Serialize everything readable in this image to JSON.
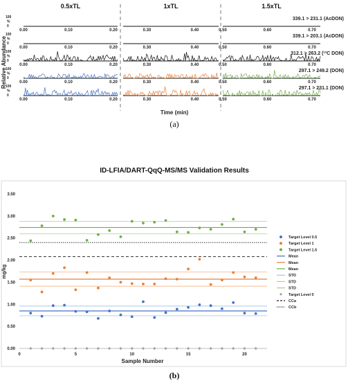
{
  "chart_data": [
    {
      "type": "line",
      "xlabel": "Time (min)",
      "ylabel": "Relative Abundance",
      "caption": "(a)",
      "segments": [
        "0.5xTL",
        "1xTL",
        "1.5xTL"
      ],
      "segment_ranges": [
        [
          0.0,
          0.2
        ],
        [
          0.25,
          0.45
        ],
        [
          0.5,
          0.7
        ]
      ],
      "tick_labels": [
        [
          "0.00",
          "0.10",
          "0.20"
        ],
        [
          "0.30",
          "0.40"
        ],
        [
          "0.50",
          "0.60",
          "0.70"
        ]
      ],
      "y_tick_labels": [
        "100",
        "%",
        "0"
      ],
      "colors": {
        "black": "#111111",
        "blue": "#4472C4",
        "orange": "#ED7D31",
        "green": "#70AD47"
      },
      "traces": [
        {
          "label": "339.1 > 231.1 (AcDON)",
          "style": "flat"
        },
        {
          "label": "339.1 > 203.1 (AcDON)",
          "style": "flat"
        },
        {
          "label": "312.1 > 263.2 (¹³C DON)",
          "style": "noise_black",
          "peak": 0.6
        },
        {
          "label": "297.1 > 249.2 (DON)",
          "style": "noise_colored",
          "peak": 0.45
        },
        {
          "label": "297.1 > 231.1 (DON)",
          "style": "noise_colored",
          "peak": 0.55
        }
      ]
    },
    {
      "type": "scatter",
      "title": "ID-LFIA/DART-QqQ-MS/MS Validation Results",
      "xlabel": "Sample Number",
      "ylabel": "mg/kg",
      "caption": "(b)",
      "xlim": [
        0,
        22
      ],
      "ylim": [
        0,
        3.5
      ],
      "x_ticks": [
        0,
        5,
        10,
        15,
        20
      ],
      "y_ticks": [
        "0.00",
        "0.50",
        "1.00",
        "1.50",
        "2.00",
        "2.50",
        "3.00",
        "3.50"
      ],
      "grid": false,
      "legend_position": "right",
      "series": [
        {
          "name": "Target Level 0.5",
          "color": "#4472C4",
          "x": [
            1,
            2,
            3,
            4,
            5,
            6,
            7,
            8,
            9,
            10,
            11,
            12,
            13,
            14,
            15,
            16,
            17,
            18,
            19,
            20,
            21
          ],
          "y": [
            0.8,
            0.73,
            0.97,
            0.98,
            0.84,
            0.83,
            0.68,
            0.85,
            0.76,
            0.72,
            1.06,
            0.7,
            0.81,
            0.89,
            0.93,
            0.99,
            0.97,
            0.9,
            1.04,
            0.8,
            0.79
          ]
        },
        {
          "name": "Target Level 1",
          "color": "#ED7D31",
          "x": [
            1,
            2,
            3,
            4,
            5,
            6,
            7,
            8,
            9,
            10,
            11,
            12,
            13,
            14,
            15,
            16,
            17,
            18,
            19,
            20,
            21
          ],
          "y": [
            1.55,
            1.28,
            1.7,
            1.83,
            1.33,
            1.72,
            1.37,
            1.6,
            1.5,
            1.47,
            1.46,
            1.46,
            1.58,
            1.57,
            1.8,
            2.02,
            1.45,
            1.55,
            1.72,
            1.62,
            1.6
          ]
        },
        {
          "name": "Target Level 1.5",
          "color": "#70AD47",
          "x": [
            1,
            2,
            3,
            4,
            5,
            6,
            7,
            8,
            9,
            10,
            11,
            12,
            13,
            14,
            15,
            16,
            17,
            18,
            19,
            20,
            21
          ],
          "y": [
            2.44,
            2.78,
            3.0,
            2.92,
            2.91,
            2.45,
            2.58,
            2.67,
            2.53,
            2.88,
            2.84,
            2.86,
            2.9,
            2.64,
            2.63,
            2.73,
            2.7,
            2.81,
            2.93,
            2.64,
            2.7
          ]
        },
        {
          "name": "Target Level 0",
          "color": "#A5A5A5",
          "x": [
            1,
            2,
            3,
            4,
            5,
            6,
            7,
            8,
            9,
            10,
            11,
            12,
            13,
            14,
            15,
            16,
            17,
            18,
            19,
            20,
            21
          ],
          "y": [
            0,
            0,
            0,
            0,
            0,
            0,
            0,
            0,
            0,
            0,
            0,
            0,
            0,
            0,
            0,
            0,
            0,
            0,
            0,
            0,
            0
          ]
        }
      ],
      "mean_lines": [
        {
          "name": "Mean",
          "color": "#4472C4",
          "value": 0.85
        },
        {
          "name": "Mean",
          "color": "#ED7D31",
          "value": 1.57
        },
        {
          "name": "Mean",
          "color": "#70AD47",
          "value": 2.74
        }
      ],
      "std_lines": [
        {
          "name": "STD",
          "color": "#9DC3E6",
          "values": [
            0.74,
            0.96
          ]
        },
        {
          "name": "STD",
          "color": "#F4B183",
          "values": [
            1.41,
            1.73
          ]
        },
        {
          "name": "STD",
          "color": "#A9D18E",
          "values": [
            2.6,
            2.88
          ]
        }
      ],
      "limit_lines": [
        {
          "name": "CCa",
          "style": "dashed",
          "value": 2.08
        },
        {
          "name": "CCb",
          "style": "dotted",
          "value": 2.4
        }
      ],
      "legend": [
        {
          "label": "Target Level 0.5",
          "kind": "dot",
          "color": "#4472C4"
        },
        {
          "label": "Target Level 1",
          "kind": "dot",
          "color": "#ED7D31"
        },
        {
          "label": "Target Level 1.5",
          "kind": "dot",
          "color": "#70AD47"
        },
        {
          "label": "Mean",
          "kind": "line",
          "color": "#4472C4"
        },
        {
          "label": "Mean",
          "kind": "line",
          "color": "#ED7D31"
        },
        {
          "label": "Mean",
          "kind": "line",
          "color": "#70AD47"
        },
        {
          "label": "STD",
          "kind": "line",
          "color": "#9DC3E6"
        },
        {
          "label": "STD",
          "kind": "line",
          "color": "#F4B183"
        },
        {
          "label": "STD",
          "kind": "line",
          "color": "#A9D18E"
        },
        {
          "label": "Target Level 0",
          "kind": "diamond",
          "color": "#A5A5A5"
        },
        {
          "label": "CCa",
          "kind": "dashed",
          "color": "#222222"
        },
        {
          "label": "CCb",
          "kind": "dotted",
          "color": "#222222"
        }
      ]
    }
  ]
}
